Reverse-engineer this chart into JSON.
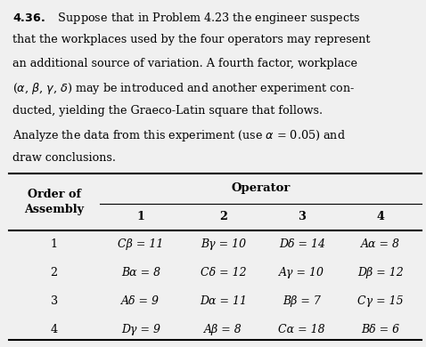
{
  "problem_number": "4.36.",
  "paragraph": "Suppose that in Problem 4.23 the engineer suspects that the workplaces used by the four operators may represent an additional source of variation. A fourth factor, workplace (α, β, γ, δ) may be introduced and another experiment con-ducted, yielding the Graeco-Latin square that follows. Analyze the data from this experiment (use α = 0.05) and draw conclusions.",
  "table_title": "Operator",
  "col_header_left": "Order of\nAssembly",
  "col_headers": [
    "1",
    "2",
    "3",
    "4"
  ],
  "row_headers": [
    "1",
    "2",
    "3",
    "4"
  ],
  "cell_data": [
    [
      "Cβ = 11",
      "Bγ = 10",
      "Dδ = 14",
      "Aα = 8"
    ],
    [
      "Bα = 8",
      "Cδ = 12",
      "Aγ = 10",
      "Dβ = 12"
    ],
    [
      "Aδ = 9",
      "Dα = 11",
      "Bβ = 7",
      "Cγ = 15"
    ],
    [
      "Dγ = 9",
      "Aβ = 8",
      "Cα = 18",
      "Bδ = 6"
    ]
  ],
  "bg_color": "#f0f0f0",
  "text_color": "#000000"
}
